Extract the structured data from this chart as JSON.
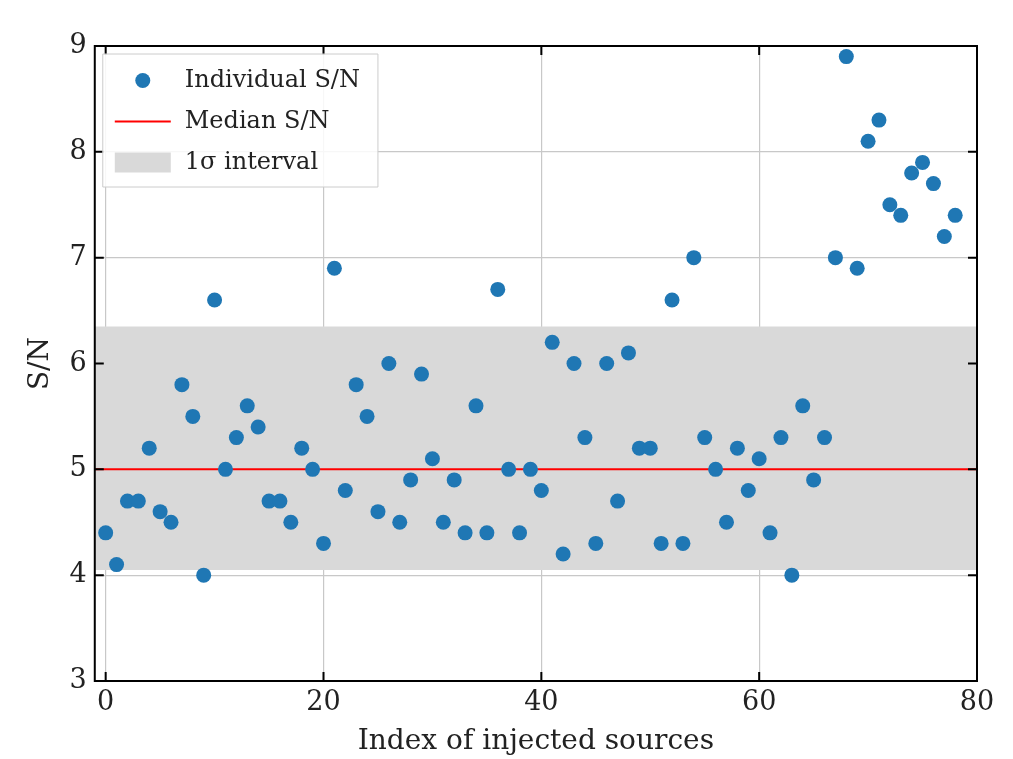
{
  "chart_data": {
    "type": "scatter",
    "xlabel": "Index of injected sources",
    "ylabel": "S/N",
    "x": [
      0,
      1,
      2,
      3,
      4,
      5,
      6,
      7,
      8,
      9,
      10,
      11,
      12,
      13,
      14,
      15,
      16,
      17,
      18,
      19,
      20,
      21,
      22,
      23,
      24,
      25,
      26,
      27,
      28,
      29,
      30,
      31,
      32,
      33,
      34,
      35,
      36,
      37,
      38,
      39,
      40,
      41,
      42,
      43,
      44,
      45,
      46,
      47,
      48,
      49,
      50,
      51,
      52,
      53,
      54,
      55,
      56,
      57,
      58,
      59,
      60,
      61,
      62,
      63,
      64,
      65,
      66,
      67,
      68,
      69,
      70,
      71,
      72,
      73,
      74,
      75,
      76,
      77,
      78
    ],
    "series": [
      {
        "name": "Individual S/N",
        "color": "#1f77b4",
        "values": [
          4.4,
          4.1,
          4.7,
          4.7,
          5.2,
          4.6,
          4.5,
          5.8,
          5.5,
          4.0,
          6.6,
          5.0,
          5.3,
          5.6,
          5.4,
          4.7,
          4.7,
          4.5,
          5.2,
          5.0,
          4.3,
          6.9,
          4.8,
          5.8,
          5.5,
          4.6,
          6.0,
          4.5,
          4.9,
          5.9,
          5.1,
          4.5,
          4.9,
          4.4,
          5.6,
          4.4,
          6.7,
          5.0,
          4.4,
          5.0,
          4.8,
          6.2,
          4.2,
          6.0,
          5.3,
          4.3,
          6.0,
          4.7,
          6.1,
          5.2,
          5.2,
          4.3,
          6.6,
          4.3,
          7.0,
          5.3,
          5.0,
          4.5,
          5.2,
          4.8,
          5.1,
          4.4,
          5.3,
          4.0,
          5.6,
          4.9,
          5.3,
          7.0,
          8.9,
          6.9,
          8.1,
          8.3,
          7.5,
          7.4,
          7.8,
          7.9,
          7.7,
          7.2,
          7.4
        ]
      }
    ],
    "ref_lines": [
      {
        "axis": "y",
        "value": 5.0,
        "label": "Median S/N",
        "color": "#ff0000"
      }
    ],
    "bands": [
      {
        "axis": "y",
        "from": 4.05,
        "to": 6.35,
        "label": "1σ interval",
        "color": "#d9d9d9"
      }
    ],
    "xlim": [
      -1,
      80
    ],
    "xticks": [
      0,
      20,
      40,
      60,
      80
    ],
    "ylim": [
      3,
      9
    ],
    "yticks": [
      3,
      4,
      5,
      6,
      7,
      8,
      9
    ],
    "grid": true,
    "legend": "top left",
    "marker": "circle"
  }
}
